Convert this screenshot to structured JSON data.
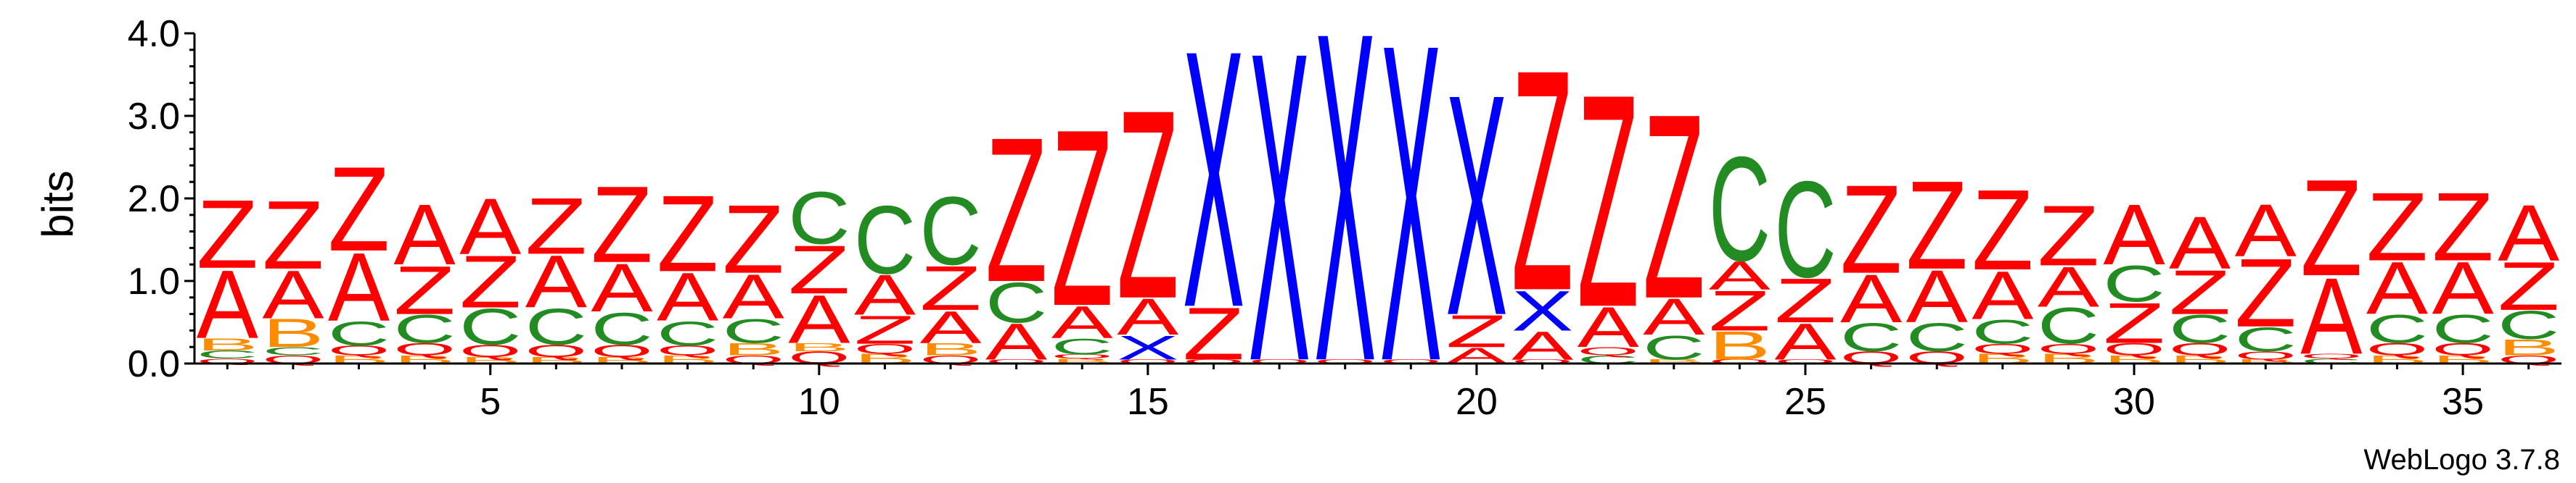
{
  "chart_data": {
    "type": "sequence-logo",
    "ylabel": "bits",
    "ylim": [
      0,
      4.0
    ],
    "yticks": [
      {
        "value": 0.0,
        "label": "0.0"
      },
      {
        "value": 1.0,
        "label": "1.0"
      },
      {
        "value": 2.0,
        "label": "2.0"
      },
      {
        "value": 3.0,
        "label": "3.0"
      },
      {
        "value": 4.0,
        "label": "4.0"
      }
    ],
    "xticks": [
      {
        "value": 5,
        "label": "5"
      },
      {
        "value": 10,
        "label": "10"
      },
      {
        "value": 15,
        "label": "15"
      },
      {
        "value": 20,
        "label": "20"
      },
      {
        "value": 25,
        "label": "25"
      },
      {
        "value": 30,
        "label": "30"
      },
      {
        "value": 35,
        "label": "35"
      }
    ],
    "xlim": [
      0.5,
      36.5
    ],
    "colors": {
      "Z": "#ff0000",
      "A": "#ff0000",
      "Q": "#ff0000",
      "X": "#0000ff",
      "C": "#228b22",
      "B": "#ff8c00"
    },
    "positions": [
      {
        "pos": 1,
        "stack": [
          [
            "Q",
            0.06
          ],
          [
            "C",
            0.1
          ],
          [
            "B",
            0.15
          ],
          [
            "A",
            0.85
          ],
          [
            "Z",
            0.85
          ]
        ]
      },
      {
        "pos": 2,
        "stack": [
          [
            "Q",
            0.1
          ],
          [
            "C",
            0.1
          ],
          [
            "B",
            0.35
          ],
          [
            "A",
            0.6
          ],
          [
            "Z",
            0.85
          ]
        ]
      },
      {
        "pos": 3,
        "stack": [
          [
            "B",
            0.1
          ],
          [
            "Q",
            0.12
          ],
          [
            "C",
            0.3
          ],
          [
            "A",
            0.85
          ],
          [
            "Z",
            1.05
          ]
        ]
      },
      {
        "pos": 4,
        "stack": [
          [
            "B",
            0.1
          ],
          [
            "Q",
            0.15
          ],
          [
            "C",
            0.35
          ],
          [
            "Z",
            0.6
          ],
          [
            "A",
            0.75
          ]
        ]
      },
      {
        "pos": 5,
        "stack": [
          [
            "B",
            0.08
          ],
          [
            "Q",
            0.15
          ],
          [
            "C",
            0.45
          ],
          [
            "Z",
            0.65
          ],
          [
            "A",
            0.7
          ]
        ]
      },
      {
        "pos": 6,
        "stack": [
          [
            "B",
            0.08
          ],
          [
            "Q",
            0.15
          ],
          [
            "C",
            0.45
          ],
          [
            "A",
            0.65
          ],
          [
            "Z",
            0.7
          ]
        ]
      },
      {
        "pos": 7,
        "stack": [
          [
            "B",
            0.08
          ],
          [
            "Q",
            0.15
          ],
          [
            "C",
            0.4
          ],
          [
            "A",
            0.6
          ],
          [
            "Z",
            0.95
          ]
        ]
      },
      {
        "pos": 8,
        "stack": [
          [
            "B",
            0.1
          ],
          [
            "Q",
            0.12
          ],
          [
            "C",
            0.3
          ],
          [
            "A",
            0.6
          ],
          [
            "Z",
            0.95
          ]
        ]
      },
      {
        "pos": 9,
        "stack": [
          [
            "Q",
            0.1
          ],
          [
            "B",
            0.15
          ],
          [
            "C",
            0.3
          ],
          [
            "A",
            0.55
          ],
          [
            "Z",
            0.85
          ]
        ]
      },
      {
        "pos": 10,
        "stack": [
          [
            "Q",
            0.15
          ],
          [
            "B",
            0.1
          ],
          [
            "A",
            0.6
          ],
          [
            "Z",
            0.6
          ],
          [
            "C",
            0.65
          ]
        ]
      },
      {
        "pos": 11,
        "stack": [
          [
            "B",
            0.12
          ],
          [
            "Q",
            0.12
          ],
          [
            "Z",
            0.35
          ],
          [
            "A",
            0.5
          ],
          [
            "C",
            0.85
          ]
        ]
      },
      {
        "pos": 12,
        "stack": [
          [
            "Q",
            0.1
          ],
          [
            "B",
            0.15
          ],
          [
            "A",
            0.4
          ],
          [
            "Z",
            0.55
          ],
          [
            "C",
            0.85
          ]
        ]
      },
      {
        "pos": 13,
        "stack": [
          [
            "Q",
            0.05
          ],
          [
            "A",
            0.45
          ],
          [
            "C",
            0.5
          ],
          [
            "Z",
            1.8
          ]
        ]
      },
      {
        "pos": 14,
        "stack": [
          [
            "B",
            0.06
          ],
          [
            "Q",
            0.05
          ],
          [
            "C",
            0.2
          ],
          [
            "A",
            0.4
          ],
          [
            "Z",
            2.2
          ]
        ]
      },
      {
        "pos": 15,
        "stack": [
          [
            "Q",
            0.05
          ],
          [
            "X",
            0.3
          ],
          [
            "A",
            0.45
          ],
          [
            "Z",
            2.35
          ]
        ]
      },
      {
        "pos": 16,
        "stack": [
          [
            "Q",
            0.05
          ],
          [
            "Z",
            0.65
          ],
          [
            "X",
            3.2
          ]
        ]
      },
      {
        "pos": 17,
        "stack": [
          [
            "Q",
            0.05
          ],
          [
            "X",
            3.85
          ]
        ]
      },
      {
        "pos": 18,
        "stack": [
          [
            "Q",
            0.05
          ],
          [
            "X",
            4.1
          ]
        ]
      },
      {
        "pos": 19,
        "stack": [
          [
            "Q",
            0.05
          ],
          [
            "X",
            3.95
          ]
        ]
      },
      {
        "pos": 20,
        "stack": [
          [
            "A",
            0.2
          ],
          [
            "Z",
            0.4
          ],
          [
            "X",
            2.75
          ]
        ]
      },
      {
        "pos": 21,
        "stack": [
          [
            "Q",
            0.05
          ],
          [
            "A",
            0.35
          ],
          [
            "X",
            0.5
          ],
          [
            "Z",
            2.75
          ]
        ]
      },
      {
        "pos": 22,
        "stack": [
          [
            "C",
            0.1
          ],
          [
            "Q",
            0.1
          ],
          [
            "A",
            0.5
          ],
          [
            "Z",
            2.65
          ]
        ]
      },
      {
        "pos": 23,
        "stack": [
          [
            "B",
            0.05
          ],
          [
            "C",
            0.3
          ],
          [
            "A",
            0.45
          ],
          [
            "Z",
            2.3
          ]
        ]
      },
      {
        "pos": 24,
        "stack": [
          [
            "Q",
            0.05
          ],
          [
            "B",
            0.35
          ],
          [
            "Z",
            0.5
          ],
          [
            "A",
            0.35
          ],
          [
            "C",
            1.3
          ]
        ]
      },
      {
        "pos": 25,
        "stack": [
          [
            "Q",
            0.05
          ],
          [
            "A",
            0.45
          ],
          [
            "Z",
            0.55
          ],
          [
            "C",
            1.2
          ]
        ]
      },
      {
        "pos": 26,
        "stack": [
          [
            "Q",
            0.15
          ],
          [
            "C",
            0.35
          ],
          [
            "A",
            0.6
          ],
          [
            "Z",
            1.1
          ]
        ]
      },
      {
        "pos": 27,
        "stack": [
          [
            "Q",
            0.15
          ],
          [
            "C",
            0.35
          ],
          [
            "A",
            0.65
          ],
          [
            "Z",
            1.1
          ]
        ]
      },
      {
        "pos": 28,
        "stack": [
          [
            "B",
            0.12
          ],
          [
            "Q",
            0.12
          ],
          [
            "C",
            0.3
          ],
          [
            "A",
            0.6
          ],
          [
            "Z",
            1.0
          ]
        ]
      },
      {
        "pos": 29,
        "stack": [
          [
            "B",
            0.12
          ],
          [
            "Q",
            0.12
          ],
          [
            "C",
            0.45
          ],
          [
            "A",
            0.5
          ],
          [
            "Z",
            0.75
          ]
        ]
      },
      {
        "pos": 30,
        "stack": [
          [
            "B",
            0.1
          ],
          [
            "Q",
            0.15
          ],
          [
            "Z",
            0.5
          ],
          [
            "C",
            0.45
          ],
          [
            "A",
            0.75
          ]
        ]
      },
      {
        "pos": 31,
        "stack": [
          [
            "B",
            0.1
          ],
          [
            "Q",
            0.15
          ],
          [
            "C",
            0.35
          ],
          [
            "Z",
            0.55
          ],
          [
            "A",
            0.65
          ]
        ]
      },
      {
        "pos": 32,
        "stack": [
          [
            "B",
            0.05
          ],
          [
            "Q",
            0.1
          ],
          [
            "C",
            0.3
          ],
          [
            "Z",
            0.85
          ],
          [
            "A",
            0.65
          ]
        ]
      },
      {
        "pos": 33,
        "stack": [
          [
            "C",
            0.06
          ],
          [
            "Q",
            0.06
          ],
          [
            "A",
            0.95
          ],
          [
            "Z",
            1.2
          ]
        ]
      },
      {
        "pos": 34,
        "stack": [
          [
            "B",
            0.1
          ],
          [
            "Q",
            0.15
          ],
          [
            "C",
            0.35
          ],
          [
            "A",
            0.65
          ],
          [
            "Z",
            0.85
          ]
        ]
      },
      {
        "pos": 35,
        "stack": [
          [
            "B",
            0.1
          ],
          [
            "Q",
            0.15
          ],
          [
            "C",
            0.35
          ],
          [
            "A",
            0.65
          ],
          [
            "Z",
            0.85
          ]
        ]
      },
      {
        "pos": 36,
        "stack": [
          [
            "Q",
            0.1
          ],
          [
            "B",
            0.2
          ],
          [
            "C",
            0.35
          ],
          [
            "Z",
            0.6
          ],
          [
            "A",
            0.7
          ]
        ]
      }
    ]
  },
  "footer": {
    "credit": "WebLogo 3.7.8"
  }
}
